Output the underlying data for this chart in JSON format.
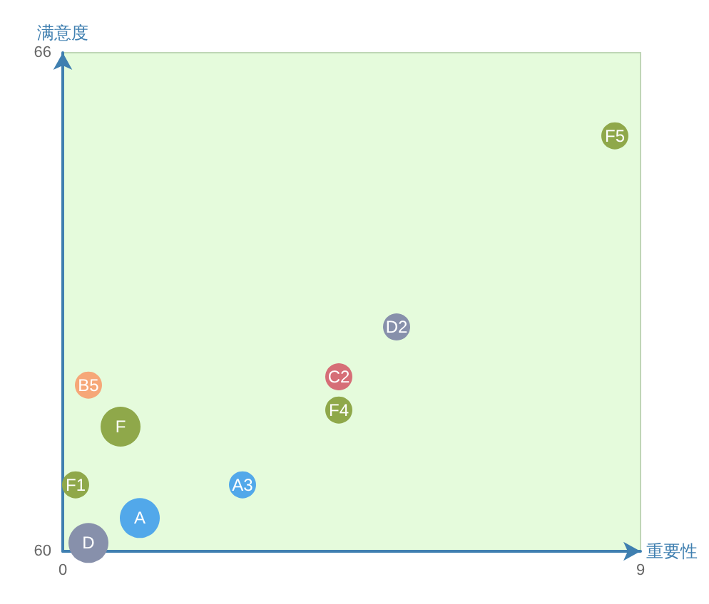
{
  "chart_data": {
    "type": "bubble",
    "xlabel": "重要性",
    "ylabel": "满意度",
    "xlim": [
      0,
      9
    ],
    "xticks": [
      0,
      9
    ],
    "ylim": [
      60,
      66
    ],
    "yticks": [
      60,
      66
    ],
    "grid": false,
    "series": [
      {
        "x": [
          8.6,
          5.2,
          4.3,
          4.3,
          0.4,
          0.9,
          0.2,
          2.8,
          1.2,
          0.4
        ],
        "values": [
          65.0,
          62.7,
          62.1,
          61.7,
          62.0,
          61.5,
          60.8,
          60.8,
          60.4,
          60.1
        ],
        "sizes": [
          0.46,
          0.46,
          0.46,
          0.46,
          0.46,
          1,
          0.46,
          0.46,
          1,
          1
        ],
        "colors": [
          "#8fa84a",
          "#8790ab",
          "#d66e77",
          "#8fa84a",
          "#f6a778",
          "#8fa84a",
          "#8fa84a",
          "#52a8ea",
          "#52a8ea",
          "#8790ab"
        ],
        "value_labels": [
          "F5",
          "D2",
          "C2",
          "F4",
          "B5",
          "F",
          "F1",
          "A3",
          "A",
          "D"
        ]
      }
    ]
  }
}
